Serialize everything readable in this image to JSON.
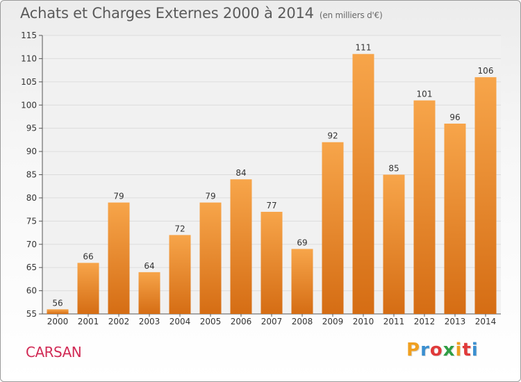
{
  "title": "Achats et Charges Externes 2000 à 2014",
  "unit": "(en milliers d'€)",
  "commune": "CARSAN",
  "logo": [
    "P",
    "r",
    "o",
    "x",
    "i",
    "t",
    "i"
  ],
  "colors": {
    "bar_light": "#f7a54a",
    "bar_dark": "#d56d14",
    "commune": "#d12a55",
    "logo": [
      "#f0a020",
      "#3a8fd0",
      "#e03a3a",
      "#2f9e44",
      "#f0a020",
      "#e03a3a",
      "#3a8fd0"
    ]
  },
  "chart_data": {
    "type": "bar",
    "categories": [
      "2000",
      "2001",
      "2002",
      "2003",
      "2004",
      "2005",
      "2006",
      "2007",
      "2008",
      "2009",
      "2010",
      "2011",
      "2012",
      "2013",
      "2014"
    ],
    "values": [
      56,
      66,
      79,
      64,
      72,
      79,
      84,
      77,
      69,
      92,
      111,
      85,
      101,
      96,
      106
    ],
    "ylim": [
      55,
      115
    ],
    "yticks": [
      55,
      60,
      65,
      70,
      75,
      80,
      85,
      90,
      95,
      100,
      105,
      110,
      115
    ],
    "grid": true,
    "data_labels": true
  }
}
